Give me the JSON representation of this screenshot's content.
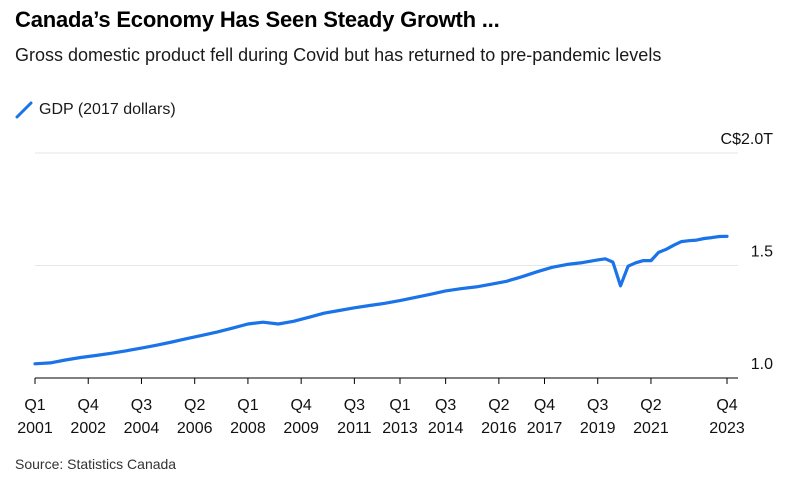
{
  "header": {
    "title": "Canada’s Economy Has Seen Steady Growth ...",
    "subtitle": "Gross domestic product fell during Covid but has returned to pre-pandemic levels"
  },
  "legend": {
    "label": "GDP (2017 dollars)",
    "color": "#1a73e8"
  },
  "source": "Source: Statistics Canada",
  "chart_data": {
    "type": "line",
    "title": "Canada’s Economy Has Seen Steady Growth ...",
    "subtitle": "Gross domestic product fell during Covid but has returned to pre-pandemic levels",
    "xlabel": "",
    "ylabel": "",
    "ylim": [
      1.0,
      2.0
    ],
    "y_unit": "C$ trillions",
    "y_ticks": [
      {
        "value": 2.0,
        "label": "C$2.0T"
      },
      {
        "value": 1.5,
        "label": "1.5"
      },
      {
        "value": 1.0,
        "label": "1.0"
      }
    ],
    "x_ticks": [
      {
        "q": "Q1",
        "year": "2001",
        "t": 2001.0
      },
      {
        "q": "Q4",
        "year": "2002",
        "t": 2002.75
      },
      {
        "q": "Q3",
        "year": "2004",
        "t": 2004.5
      },
      {
        "q": "Q2",
        "year": "2006",
        "t": 2006.25
      },
      {
        "q": "Q1",
        "year": "2008",
        "t": 2008.0
      },
      {
        "q": "Q4",
        "year": "2009",
        "t": 2009.75
      },
      {
        "q": "Q3",
        "year": "2011",
        "t": 2011.5
      },
      {
        "q": "Q1",
        "year": "2013",
        "t": 2013.0
      },
      {
        "q": "Q3",
        "year": "2014",
        "t": 2014.5
      },
      {
        "q": "Q2",
        "year": "2016",
        "t": 2016.25
      },
      {
        "q": "Q4",
        "year": "2017",
        "t": 2017.75
      },
      {
        "q": "Q3",
        "year": "2019",
        "t": 2019.5
      },
      {
        "q": "Q2",
        "year": "2021",
        "t": 2021.25
      },
      {
        "q": "Q4",
        "year": "2023",
        "t": 2023.75
      }
    ],
    "grid": true,
    "legend_position": "top-left",
    "series": [
      {
        "name": "GDP (2017 dollars)",
        "color": "#1a73e8",
        "points": [
          [
            2001.0,
            1.063
          ],
          [
            2001.5,
            1.067
          ],
          [
            2002.0,
            1.08
          ],
          [
            2002.5,
            1.091
          ],
          [
            2003.0,
            1.1
          ],
          [
            2003.5,
            1.11
          ],
          [
            2004.0,
            1.121
          ],
          [
            2004.5,
            1.133
          ],
          [
            2005.0,
            1.146
          ],
          [
            2005.5,
            1.16
          ],
          [
            2006.0,
            1.175
          ],
          [
            2006.5,
            1.19
          ],
          [
            2007.0,
            1.205
          ],
          [
            2007.5,
            1.222
          ],
          [
            2008.0,
            1.24
          ],
          [
            2008.5,
            1.248
          ],
          [
            2009.0,
            1.24
          ],
          [
            2009.5,
            1.252
          ],
          [
            2010.0,
            1.27
          ],
          [
            2010.5,
            1.288
          ],
          [
            2011.0,
            1.3
          ],
          [
            2011.5,
            1.312
          ],
          [
            2012.0,
            1.322
          ],
          [
            2012.5,
            1.332
          ],
          [
            2013.0,
            1.344
          ],
          [
            2013.5,
            1.358
          ],
          [
            2014.0,
            1.372
          ],
          [
            2014.5,
            1.387
          ],
          [
            2015.0,
            1.397
          ],
          [
            2015.5,
            1.405
          ],
          [
            2016.0,
            1.417
          ],
          [
            2016.5,
            1.43
          ],
          [
            2017.0,
            1.45
          ],
          [
            2017.5,
            1.472
          ],
          [
            2018.0,
            1.492
          ],
          [
            2018.5,
            1.505
          ],
          [
            2019.0,
            1.513
          ],
          [
            2019.5,
            1.525
          ],
          [
            2019.75,
            1.53
          ],
          [
            2020.0,
            1.515
          ],
          [
            2020.25,
            1.41
          ],
          [
            2020.5,
            1.497
          ],
          [
            2020.75,
            1.512
          ],
          [
            2021.0,
            1.522
          ],
          [
            2021.25,
            1.522
          ],
          [
            2021.5,
            1.558
          ],
          [
            2021.75,
            1.572
          ],
          [
            2022.0,
            1.59
          ],
          [
            2022.25,
            1.606
          ],
          [
            2022.5,
            1.61
          ],
          [
            2022.75,
            1.613
          ],
          [
            2023.0,
            1.62
          ],
          [
            2023.25,
            1.624
          ],
          [
            2023.5,
            1.629
          ],
          [
            2023.75,
            1.63
          ]
        ]
      }
    ]
  }
}
